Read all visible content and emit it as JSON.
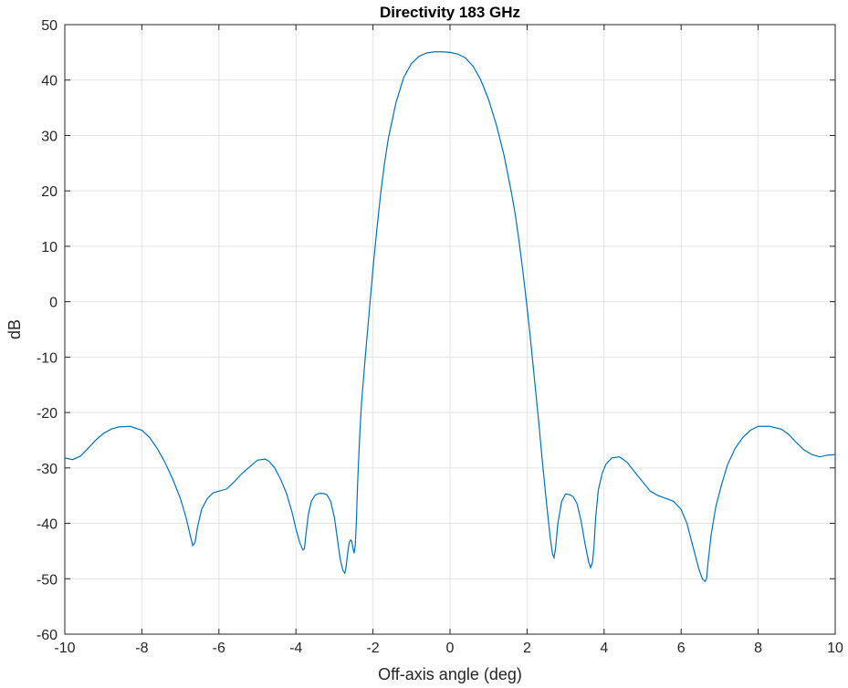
{
  "chart_data": {
    "type": "line",
    "title": "Directivity 183 GHz",
    "xlabel": "Off-axis angle (deg)",
    "ylabel": "dB",
    "xlim": [
      -10,
      10
    ],
    "ylim": [
      -60,
      50
    ],
    "xticks": [
      -10,
      -8,
      -6,
      -4,
      -2,
      0,
      2,
      4,
      6,
      8,
      10
    ],
    "xtick_labels": [
      "-10",
      "-8",
      "-6",
      "-4",
      "-2",
      "0",
      "2",
      "4",
      "6",
      "8",
      "10"
    ],
    "yticks": [
      -60,
      -50,
      -40,
      -30,
      -20,
      -10,
      0,
      10,
      20,
      30,
      40,
      50
    ],
    "ytick_labels": [
      "-60",
      "-50",
      "-40",
      "-30",
      "-20",
      "-10",
      "0",
      "10",
      "20",
      "30",
      "40",
      "50"
    ],
    "grid": true,
    "line_color": "#0072BD",
    "series": [
      {
        "x": [
          -10,
          -9.8,
          -9.6,
          -9.4,
          -9.2,
          -9.0,
          -8.8,
          -8.6,
          -8.3,
          -8.0,
          -7.8,
          -7.6,
          -7.4,
          -7.2,
          -7.0,
          -6.85,
          -6.75,
          -6.68,
          -6.62,
          -6.55,
          -6.45,
          -6.3,
          -6.15,
          -6.0,
          -5.8,
          -5.6,
          -5.4,
          -5.2,
          -5.0,
          -4.8,
          -4.7,
          -4.55,
          -4.4,
          -4.25,
          -4.1,
          -4.0,
          -3.9,
          -3.82,
          -3.78,
          -3.74,
          -3.68,
          -3.6,
          -3.5,
          -3.4,
          -3.3,
          -3.2,
          -3.1,
          -3.0,
          -2.92,
          -2.85,
          -2.78,
          -2.73,
          -2.7,
          -2.66,
          -2.62,
          -2.58,
          -2.55,
          -2.52,
          -2.49,
          -2.46,
          -2.43,
          -2.4,
          -2.35,
          -2.3,
          -2.2,
          -2.1,
          -2.0,
          -1.9,
          -1.8,
          -1.7,
          -1.6,
          -1.4,
          -1.2,
          -1.0,
          -0.8,
          -0.6,
          -0.4,
          -0.2,
          0.0,
          0.2,
          0.4,
          0.6,
          0.8,
          1.0,
          1.2,
          1.4,
          1.6,
          1.7,
          1.8,
          1.9,
          2.0,
          2.1,
          2.2,
          2.3,
          2.4,
          2.5,
          2.6,
          2.66,
          2.7,
          2.74,
          2.8,
          2.9,
          3.0,
          3.1,
          3.2,
          3.3,
          3.4,
          3.5,
          3.6,
          3.65,
          3.7,
          3.74,
          3.78,
          3.85,
          3.95,
          4.05,
          4.2,
          4.4,
          4.6,
          4.8,
          5.0,
          5.2,
          5.4,
          5.6,
          5.8,
          6.0,
          6.15,
          6.3,
          6.45,
          6.55,
          6.62,
          6.66,
          6.7,
          6.78,
          6.9,
          7.05,
          7.2,
          7.4,
          7.6,
          7.8,
          8.0,
          8.3,
          8.6,
          8.8,
          9.0,
          9.2,
          9.4,
          9.6,
          9.8,
          10.0
        ],
        "y": [
          -28.2,
          -28.5,
          -27.9,
          -26.5,
          -25.0,
          -23.8,
          -23.0,
          -22.6,
          -22.5,
          -23.2,
          -24.5,
          -26.5,
          -29.0,
          -32.0,
          -35.5,
          -39.0,
          -42.0,
          -44.0,
          -43.5,
          -40.5,
          -37.5,
          -35.5,
          -34.5,
          -34.2,
          -33.8,
          -32.5,
          -31.0,
          -29.8,
          -28.6,
          -28.4,
          -28.8,
          -30.0,
          -32.0,
          -34.5,
          -38.0,
          -41.0,
          -43.5,
          -44.8,
          -44.6,
          -42.0,
          -38.5,
          -36.0,
          -34.9,
          -34.6,
          -34.6,
          -34.8,
          -36.0,
          -39.0,
          -43.0,
          -46.5,
          -48.5,
          -49.0,
          -48.0,
          -45.5,
          -43.5,
          -43.0,
          -43.2,
          -44.5,
          -45.4,
          -44.0,
          -39.5,
          -33.0,
          -25.0,
          -18.5,
          -10.0,
          -2.0,
          6.0,
          13.0,
          19.5,
          25.0,
          29.5,
          36.0,
          40.5,
          43.0,
          44.3,
          44.9,
          45.1,
          45.1,
          45.0,
          44.7,
          44.0,
          42.5,
          40.0,
          36.5,
          32.0,
          26.5,
          19.5,
          15.5,
          10.5,
          5.0,
          -1.0,
          -7.5,
          -14.5,
          -21.5,
          -29.0,
          -36.0,
          -42.5,
          -45.5,
          -46.2,
          -44.5,
          -40.0,
          -36.0,
          -34.7,
          -34.8,
          -35.2,
          -36.5,
          -39.5,
          -43.5,
          -47.0,
          -48.0,
          -47.0,
          -44.0,
          -39.0,
          -34.0,
          -31.0,
          -29.3,
          -28.2,
          -28.0,
          -29.0,
          -30.8,
          -32.5,
          -34.2,
          -35.0,
          -35.5,
          -36.0,
          -37.5,
          -40.0,
          -44.0,
          -48.0,
          -50.0,
          -50.5,
          -50.0,
          -47.0,
          -42.0,
          -37.0,
          -33.0,
          -29.5,
          -26.5,
          -24.5,
          -23.2,
          -22.5,
          -22.5,
          -23.0,
          -24.0,
          -25.5,
          -26.8,
          -27.6,
          -28.0,
          -27.7,
          -27.6
        ]
      }
    ]
  }
}
